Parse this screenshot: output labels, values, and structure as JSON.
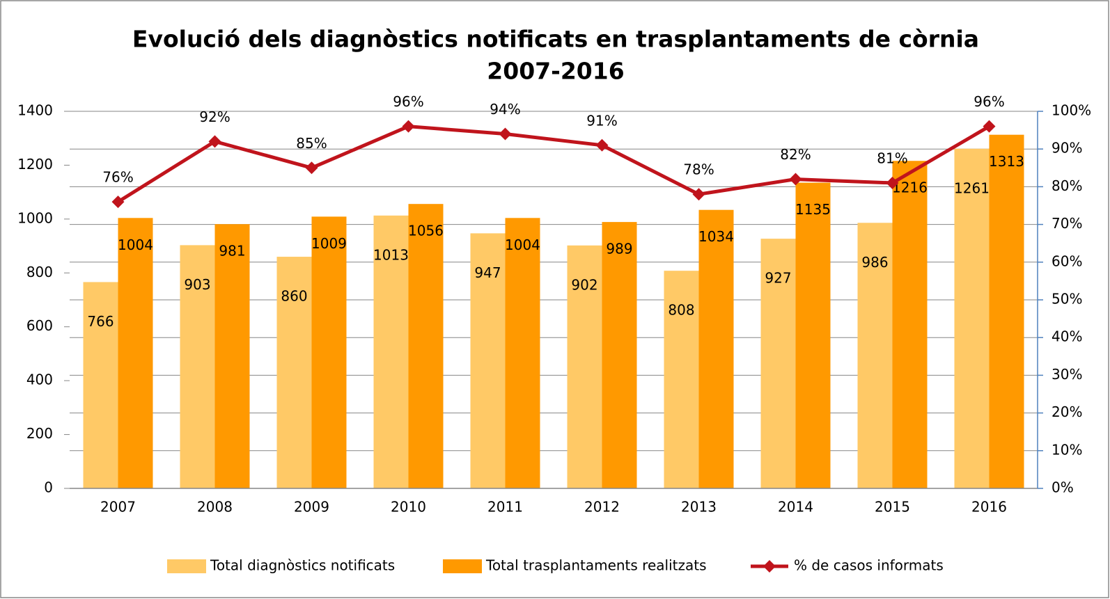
{
  "chart_data": {
    "type": "bar_line",
    "title": [
      "Evolució dels diagnòstics notificats en trasplantaments de còrnia",
      "2007-2016"
    ],
    "categories": [
      "2007",
      "2008",
      "2009",
      "2010",
      "2011",
      "2012",
      "2013",
      "2014",
      "2015",
      "2016"
    ],
    "series": [
      {
        "name": "Total diagnòstics notificats",
        "type": "bar",
        "color": "#ffc966",
        "values": [
          766,
          903,
          860,
          1013,
          947,
          902,
          808,
          927,
          986,
          1261
        ]
      },
      {
        "name": "Total trasplantaments realitzats",
        "type": "bar",
        "color": "#ff9900",
        "values": [
          1004,
          981,
          1009,
          1056,
          1004,
          989,
          1034,
          1135,
          1216,
          1313
        ]
      },
      {
        "name": "% de casos informats",
        "type": "line",
        "axis": "y2",
        "color": "#c0141c",
        "values": [
          76,
          92,
          85,
          96,
          94,
          91,
          78,
          82,
          81,
          96
        ],
        "value_labels": [
          "76%",
          "92%",
          "85%",
          "96%",
          "94%",
          "91%",
          "78%",
          "82%",
          "81%",
          "96%"
        ]
      }
    ],
    "ylim": [
      0,
      1400
    ],
    "yticks": [
      0,
      200,
      400,
      600,
      800,
      1000,
      1200,
      1400
    ],
    "y2lim": [
      0,
      100
    ],
    "y2ticks": [
      {
        "value": 0,
        "label": "0%"
      },
      {
        "value": 10,
        "label": "10%"
      },
      {
        "value": 20,
        "label": "20%"
      },
      {
        "value": 30,
        "label": "30%"
      },
      {
        "value": 40,
        "label": "40%"
      },
      {
        "value": 50,
        "label": "50%"
      },
      {
        "value": 60,
        "label": "60%"
      },
      {
        "value": 70,
        "label": "70%"
      },
      {
        "value": 80,
        "label": "80%"
      },
      {
        "value": 90,
        "label": "90%"
      },
      {
        "value": 100,
        "label": "100%"
      }
    ],
    "grid": true,
    "legend": "bottom"
  }
}
